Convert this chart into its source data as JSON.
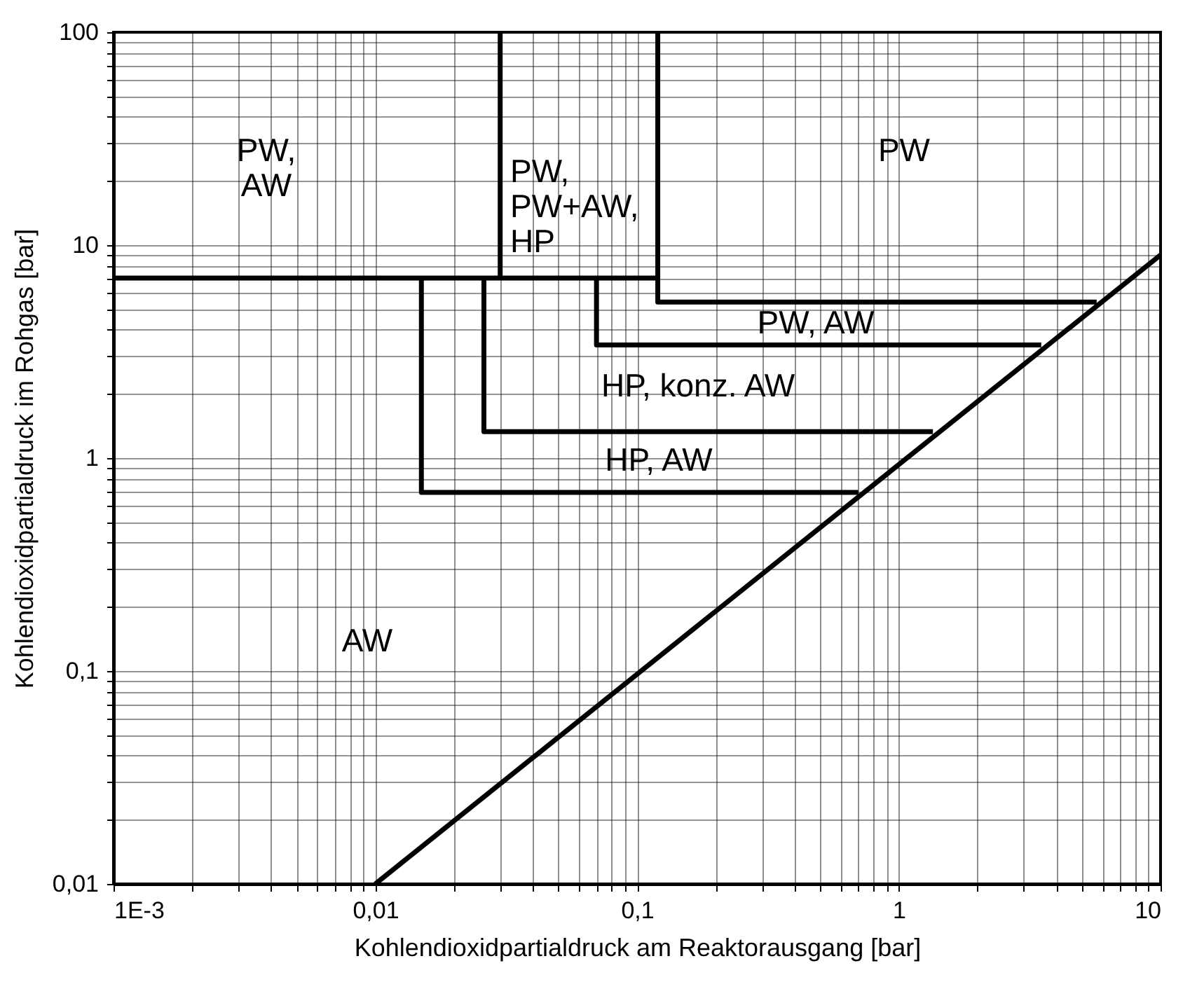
{
  "chart_data": {
    "type": "line",
    "xlabel": "Kohlendioxidpartialdruck am Reaktorausgang [bar]",
    "ylabel": "Kohlendioxidpartialdruck im Rohgas [bar]",
    "log": "xy",
    "grid": true,
    "xlim": [
      0.001,
      10
    ],
    "ylim": [
      0.01,
      100
    ],
    "xticks": [
      {
        "value": 0.001,
        "label": "1E-3"
      },
      {
        "value": 0.002,
        "label": null
      },
      {
        "value": 0.003,
        "label": null
      },
      {
        "value": 0.004,
        "label": null
      },
      {
        "value": 0.005,
        "label": null
      },
      {
        "value": 0.006,
        "label": null
      },
      {
        "value": 0.007,
        "label": null
      },
      {
        "value": 0.008,
        "label": null
      },
      {
        "value": 0.009,
        "label": null
      },
      {
        "value": 0.01,
        "label": "0,01"
      },
      {
        "value": 0.02,
        "label": null
      },
      {
        "value": 0.03,
        "label": null
      },
      {
        "value": 0.04,
        "label": null
      },
      {
        "value": 0.05,
        "label": null
      },
      {
        "value": 0.06,
        "label": null
      },
      {
        "value": 0.07,
        "label": null
      },
      {
        "value": 0.08,
        "label": null
      },
      {
        "value": 0.09,
        "label": null
      },
      {
        "value": 0.1,
        "label": "0,1"
      },
      {
        "value": 0.2,
        "label": null
      },
      {
        "value": 0.3,
        "label": null
      },
      {
        "value": 0.4,
        "label": null
      },
      {
        "value": 0.5,
        "label": null
      },
      {
        "value": 0.6,
        "label": null
      },
      {
        "value": 0.7,
        "label": null
      },
      {
        "value": 0.8,
        "label": null
      },
      {
        "value": 0.9,
        "label": null
      },
      1,
      {
        "value": 2,
        "label": null
      },
      {
        "value": 3,
        "label": null
      },
      {
        "value": 4,
        "label": null
      },
      {
        "value": 5,
        "label": null
      },
      {
        "value": 6,
        "label": null
      },
      {
        "value": 7,
        "label": null
      },
      {
        "value": 8,
        "label": null
      },
      {
        "value": 9,
        "label": null
      },
      10
    ],
    "yticks": [
      {
        "value": 0.01,
        "label": "0,01"
      },
      {
        "value": 0.02,
        "label": null
      },
      {
        "value": 0.03,
        "label": null
      },
      {
        "value": 0.04,
        "label": null
      },
      {
        "value": 0.05,
        "label": null
      },
      {
        "value": 0.06,
        "label": null
      },
      {
        "value": 0.07,
        "label": null
      },
      {
        "value": 0.08,
        "label": null
      },
      {
        "value": 0.09,
        "label": null
      },
      {
        "value": 0.1,
        "label": "0,1"
      },
      {
        "value": 0.2,
        "label": null
      },
      {
        "value": 0.3,
        "label": null
      },
      {
        "value": 0.4,
        "label": null
      },
      {
        "value": 0.5,
        "label": null
      },
      {
        "value": 0.6,
        "label": null
      },
      {
        "value": 0.7,
        "label": null
      },
      {
        "value": 0.8,
        "label": null
      },
      {
        "value": 0.9,
        "label": null
      },
      1,
      {
        "value": 2,
        "label": null
      },
      {
        "value": 3,
        "label": null
      },
      {
        "value": 4,
        "label": null
      },
      {
        "value": 5,
        "label": null
      },
      {
        "value": 6,
        "label": null
      },
      {
        "value": 7,
        "label": null
      },
      {
        "value": 8,
        "label": null
      },
      {
        "value": 9,
        "label": null
      },
      10,
      {
        "value": 20,
        "label": null
      },
      {
        "value": 30,
        "label": null
      },
      {
        "value": 40,
        "label": null
      },
      {
        "value": 50,
        "label": null
      },
      {
        "value": 60,
        "label": null
      },
      {
        "value": 70,
        "label": null
      },
      {
        "value": 80,
        "label": null
      },
      {
        "value": 90,
        "label": null
      },
      100
    ],
    "series": [
      {
        "color": "#000000",
        "x": [
          0.01,
          10
        ],
        "values": [
          0.01,
          9
        ]
      },
      {
        "color": "#000000",
        "x": [
          0.001,
          0.12
        ],
        "values": [
          7,
          7
        ]
      },
      {
        "color": "#000000",
        "x": [
          0.03,
          0.03
        ],
        "values": [
          100,
          7
        ]
      },
      {
        "color": "#000000",
        "x": [
          0.12,
          0.12,
          5.7
        ],
        "values": [
          100,
          5.4,
          5.4
        ]
      },
      {
        "color": "#000000",
        "x": [
          0.07,
          0.07,
          3.5
        ],
        "values": [
          7,
          3.4,
          3.4
        ]
      },
      {
        "color": "#000000",
        "x": [
          0.026,
          0.026,
          1.35
        ],
        "values": [
          7,
          1.33,
          1.33
        ]
      },
      {
        "color": "#000000",
        "x": [
          0.015,
          0.015,
          0.7
        ],
        "values": [
          7,
          0.69,
          0.69
        ]
      }
    ],
    "annotations": [
      "PW,\nAW",
      "PW,\nPW+AW,\nHP",
      "PW",
      "PW, AW",
      "HP, konz. AW",
      "HP, AW",
      "AW"
    ]
  }
}
